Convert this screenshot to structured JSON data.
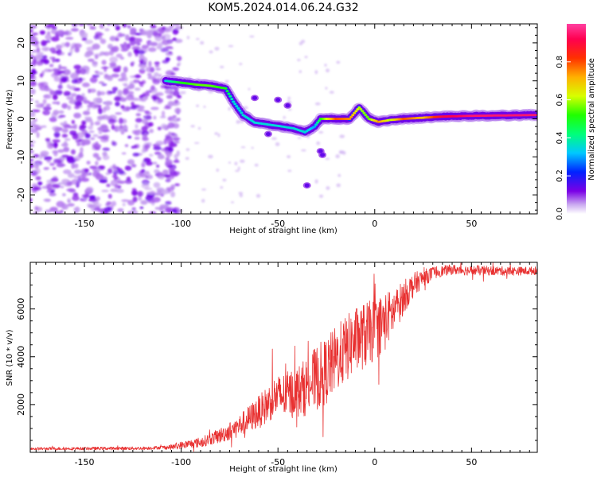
{
  "title": "KOM5.2024.014.06.24.G32",
  "chart_data": [
    {
      "type": "heatmap",
      "xlabel": "Height of straight line (km)",
      "ylabel": "Frequency (Hz)",
      "xlim": [
        -178,
        84
      ],
      "ylim": [
        -25,
        25
      ],
      "x_ticks": [
        -150,
        -100,
        -50,
        0,
        50
      ],
      "y_ticks": [
        -20,
        -10,
        0,
        10,
        20
      ],
      "colorbar": {
        "label": "Normalized spectral amplitude",
        "range": [
          0,
          1
        ],
        "ticks": [
          0.0,
          0.2,
          0.4,
          0.6,
          0.8
        ],
        "colormap": "rainbow"
      },
      "noise_region": {
        "x_range": [
          -178,
          -105
        ],
        "y_range": [
          -25,
          25
        ],
        "level": 0.12
      },
      "ridge": [
        {
          "x": -108,
          "y": 10,
          "level": 0.35
        },
        {
          "x": -100,
          "y": 9.5,
          "level": 0.5
        },
        {
          "x": -92,
          "y": 9,
          "level": 0.55
        },
        {
          "x": -85,
          "y": 8.7,
          "level": 0.55
        },
        {
          "x": -77,
          "y": 8,
          "level": 0.5
        },
        {
          "x": -73,
          "y": 4.5,
          "level": 0.35
        },
        {
          "x": -68,
          "y": 1,
          "level": 0.35
        },
        {
          "x": -62,
          "y": -1,
          "level": 0.35
        },
        {
          "x": -55,
          "y": -1.5,
          "level": 0.35
        },
        {
          "x": -48,
          "y": -2,
          "level": 0.35
        },
        {
          "x": -42,
          "y": -2.5,
          "level": 0.35
        },
        {
          "x": -36,
          "y": -3.5,
          "level": 0.35
        },
        {
          "x": -31,
          "y": -2,
          "level": 0.3
        },
        {
          "x": -28,
          "y": 0,
          "level": 0.5
        },
        {
          "x": -20,
          "y": 0,
          "level": 0.8
        },
        {
          "x": -13,
          "y": 0,
          "level": 0.75
        },
        {
          "x": -8,
          "y": 3,
          "level": 0.6
        },
        {
          "x": -3,
          "y": 0,
          "level": 0.55
        },
        {
          "x": 2,
          "y": -0.8,
          "level": 0.75
        },
        {
          "x": 8,
          "y": -0.3,
          "level": 0.6
        },
        {
          "x": 15,
          "y": 0,
          "level": 0.8
        },
        {
          "x": 25,
          "y": 0.3,
          "level": 0.7
        },
        {
          "x": 35,
          "y": 0.6,
          "level": 0.9
        },
        {
          "x": 50,
          "y": 0.8,
          "level": 0.95
        },
        {
          "x": 84,
          "y": 1,
          "level": 0.95
        }
      ]
    },
    {
      "type": "line",
      "xlabel": "Height of straight line (km)",
      "ylabel": "SNR (10 * v/v)",
      "xlim": [
        -178,
        84
      ],
      "ylim": [
        0,
        7950
      ],
      "x_ticks": [
        -150,
        -100,
        -50,
        0,
        50
      ],
      "y_ticks": [
        2000,
        4000,
        6000
      ],
      "series": [
        {
          "color": "#e83030",
          "points": [
            [
              -178,
              150
            ],
            [
              -120,
              170
            ],
            [
              -105,
              220
            ],
            [
              -100,
              300
            ],
            [
              -90,
              420
            ],
            [
              -80,
              700
            ],
            [
              -72,
              1000
            ],
            [
              -65,
              1400
            ],
            [
              -58,
              1800
            ],
            [
              -52,
              2300
            ],
            [
              -45,
              2400
            ],
            [
              -38,
              2600
            ],
            [
              -30,
              3100
            ],
            [
              -25,
              3400
            ],
            [
              -20,
              3900
            ],
            [
              -15,
              4300
            ],
            [
              -10,
              4700
            ],
            [
              -5,
              4900
            ],
            [
              0,
              5100
            ],
            [
              5,
              5500
            ],
            [
              10,
              5900
            ],
            [
              15,
              6500
            ],
            [
              20,
              7000
            ],
            [
              25,
              7300
            ],
            [
              32,
              7550
            ],
            [
              40,
              7650
            ],
            [
              50,
              7600
            ],
            [
              60,
              7600
            ],
            [
              70,
              7580
            ],
            [
              84,
              7600
            ]
          ],
          "noise": [
            [
              -178,
              60
            ],
            [
              -110,
              70
            ],
            [
              -100,
              150
            ],
            [
              -85,
              250
            ],
            [
              -70,
              450
            ],
            [
              -55,
              800
            ],
            [
              -40,
              1100
            ],
            [
              -28,
              1400
            ],
            [
              -15,
              1400
            ],
            [
              -5,
              1400
            ],
            [
              5,
              1200
            ],
            [
              15,
              700
            ],
            [
              25,
              350
            ],
            [
              35,
              220
            ],
            [
              84,
              170
            ]
          ]
        }
      ]
    }
  ]
}
